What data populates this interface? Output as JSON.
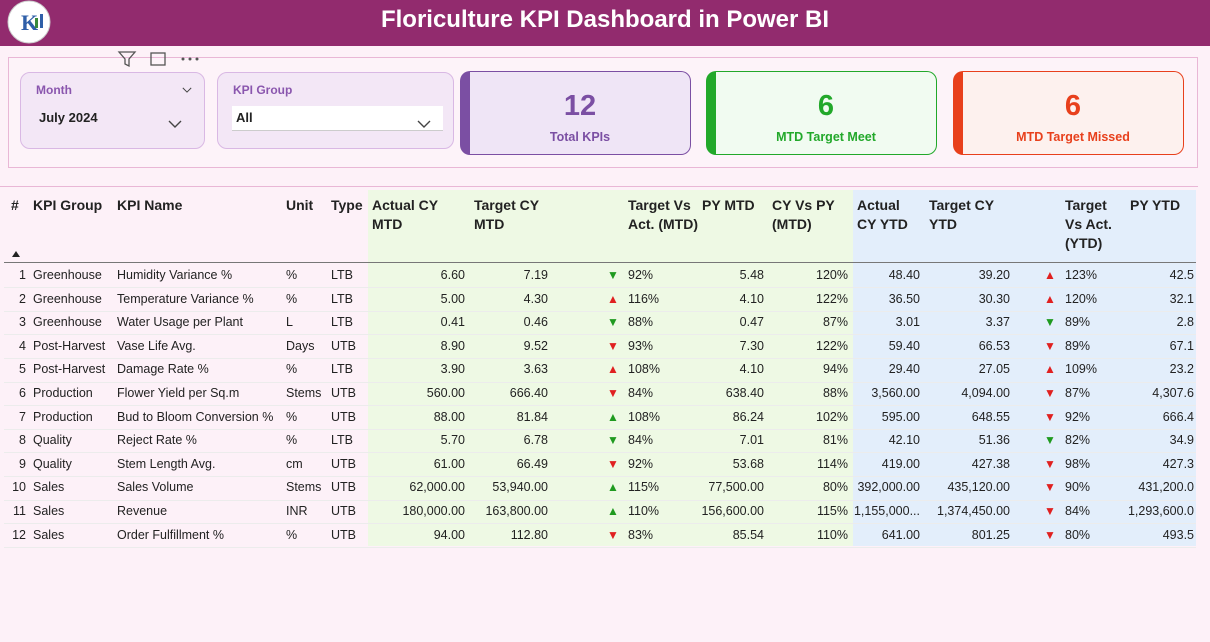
{
  "header": {
    "title": "Floriculture KPI Dashboard in Power BI"
  },
  "slicers": [
    {
      "label": "Month",
      "value": "July 2024"
    },
    {
      "label": "KPI Group",
      "value": "All"
    }
  ],
  "cards": [
    {
      "value": 12,
      "label": "Total KPIs",
      "color": "#7b4fa3"
    },
    {
      "value": 6,
      "label": "MTD Target Meet",
      "color": "#22a82a"
    },
    {
      "value": 6,
      "label": "MTD Target Missed",
      "color": "#e8401c"
    }
  ],
  "table": {
    "columns": [
      "#",
      "KPI Group",
      "KPI Name",
      "Unit",
      "Type",
      "Actual CY MTD",
      "Target CY MTD",
      "Target Vs Act. (MTD)",
      "PY MTD",
      "CY Vs PY (MTD)",
      "Actual CY YTD",
      "Target CY YTD",
      "Target Vs Act. (YTD)",
      "PY YTD"
    ],
    "rows": [
      [
        "1",
        "Greenhouse",
        "Humidity Variance %",
        "%",
        "LTB",
        "6.60",
        "7.19",
        {
          "text": "▼",
          "color": "#1f9a1f"
        },
        "92%",
        "5.48",
        "120%",
        "48.40",
        "39.20",
        {
          "text": "▲",
          "color": "#e02020"
        },
        "123%",
        "42.5"
      ],
      [
        "2",
        "Greenhouse",
        "Temperature Variance %",
        "%",
        "LTB",
        "5.00",
        "4.30",
        {
          "text": "▲",
          "color": "#e02020"
        },
        "116%",
        "4.10",
        "122%",
        "36.50",
        "30.30",
        {
          "text": "▲",
          "color": "#e02020"
        },
        "120%",
        "32.1"
      ],
      [
        "3",
        "Greenhouse",
        "Water Usage per Plant",
        "L",
        "LTB",
        "0.41",
        "0.46",
        {
          "text": "▼",
          "color": "#1f9a1f"
        },
        "88%",
        "0.47",
        "87%",
        "3.01",
        "3.37",
        {
          "text": "▼",
          "color": "#1f9a1f"
        },
        "89%",
        "2.8"
      ],
      [
        "4",
        "Post-Harvest",
        "Vase Life Avg.",
        "Days",
        "UTB",
        "8.90",
        "9.52",
        {
          "text": "▼",
          "color": "#e02020"
        },
        "93%",
        "7.30",
        "122%",
        "59.40",
        "66.53",
        {
          "text": "▼",
          "color": "#e02020"
        },
        "89%",
        "67.1"
      ],
      [
        "5",
        "Post-Harvest",
        "Damage Rate %",
        "%",
        "LTB",
        "3.90",
        "3.63",
        {
          "text": "▲",
          "color": "#e02020"
        },
        "108%",
        "4.10",
        "94%",
        "29.40",
        "27.05",
        {
          "text": "▲",
          "color": "#e02020"
        },
        "109%",
        "23.2"
      ],
      [
        "6",
        "Production",
        "Flower Yield per Sq.m",
        "Stems",
        "UTB",
        "560.00",
        "666.40",
        {
          "text": "▼",
          "color": "#e02020"
        },
        "84%",
        "638.40",
        "88%",
        "3,560.00",
        "4,094.00",
        {
          "text": "▼",
          "color": "#e02020"
        },
        "87%",
        "4,307.6"
      ],
      [
        "7",
        "Production",
        "Bud to Bloom Conversion %",
        "%",
        "UTB",
        "88.00",
        "81.84",
        {
          "text": "▲",
          "color": "#1f9a1f"
        },
        "108%",
        "86.24",
        "102%",
        "595.00",
        "648.55",
        {
          "text": "▼",
          "color": "#e02020"
        },
        "92%",
        "666.4"
      ],
      [
        "8",
        "Quality",
        "Reject Rate %",
        "%",
        "LTB",
        "5.70",
        "6.78",
        {
          "text": "▼",
          "color": "#1f9a1f"
        },
        "84%",
        "7.01",
        "81%",
        "42.10",
        "51.36",
        {
          "text": "▼",
          "color": "#1f9a1f"
        },
        "82%",
        "34.9"
      ],
      [
        "9",
        "Quality",
        "Stem Length Avg.",
        "cm",
        "UTB",
        "61.00",
        "66.49",
        {
          "text": "▼",
          "color": "#e02020"
        },
        "92%",
        "53.68",
        "114%",
        "419.00",
        "427.38",
        {
          "text": "▼",
          "color": "#e02020"
        },
        "98%",
        "427.3"
      ],
      [
        "10",
        "Sales",
        "Sales Volume",
        "Stems",
        "UTB",
        "62,000.00",
        "53,940.00",
        {
          "text": "▲",
          "color": "#1f9a1f"
        },
        "115%",
        "77,500.00",
        "80%",
        "392,000.00",
        "435,120.00",
        {
          "text": "▼",
          "color": "#e02020"
        },
        "90%",
        "431,200.0"
      ],
      [
        "11",
        "Sales",
        "Revenue",
        "INR",
        "UTB",
        "180,000.00",
        "163,800.00",
        {
          "text": "▲",
          "color": "#1f9a1f"
        },
        "110%",
        "156,600.00",
        "115%",
        "1,155,000...",
        "1,374,450.00",
        {
          "text": "▼",
          "color": "#e02020"
        },
        "84%",
        "1,293,600.0"
      ],
      [
        "12",
        "Sales",
        "Order Fulfillment %",
        "%",
        "UTB",
        "94.00",
        "112.80",
        {
          "text": "▼",
          "color": "#e02020"
        },
        "83%",
        "85.54",
        "110%",
        "641.00",
        "801.25",
        {
          "text": "▼",
          "color": "#e02020"
        },
        "80%",
        "493.5"
      ]
    ]
  }
}
